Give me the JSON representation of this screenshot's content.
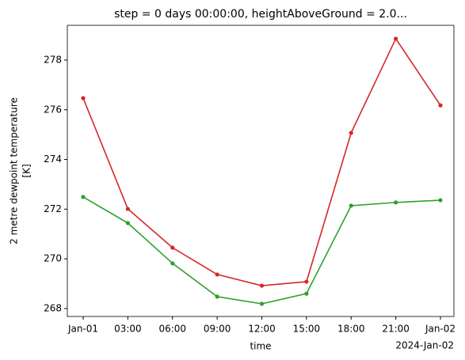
{
  "chart_data": {
    "type": "line",
    "title": "step = 0 days 00:00:00, heightAboveGround = 2.0...",
    "xlabel": "time",
    "ylabel": [
      "2 metre dewpoint temperature",
      "[K]"
    ],
    "categories": [
      "Jan-01",
      "03:00",
      "06:00",
      "09:00",
      "12:00",
      "15:00",
      "18:00",
      "21:00",
      "Jan-02"
    ],
    "x_offset_label": "2024-Jan-02",
    "series": [
      {
        "color": "#d62728",
        "values": [
          276.47,
          272.01,
          270.45,
          269.37,
          268.92,
          269.08,
          275.07,
          278.86,
          276.18
        ]
      },
      {
        "color": "#2ca02c",
        "values": [
          272.49,
          271.44,
          269.82,
          268.48,
          268.19,
          268.6,
          272.14,
          272.27,
          272.36
        ]
      }
    ],
    "ylim": [
      267.68,
      279.4
    ],
    "yticks": [
      268,
      270,
      272,
      274,
      276,
      278
    ],
    "markers": true
  }
}
